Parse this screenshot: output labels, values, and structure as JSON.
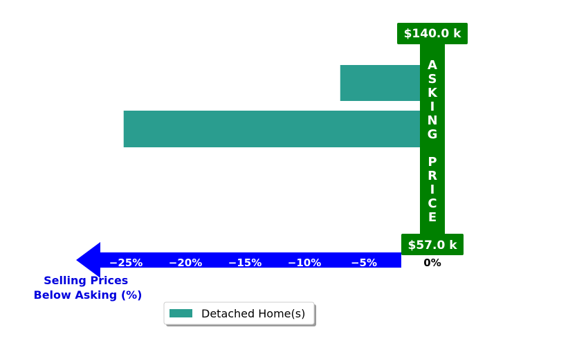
{
  "chart_data": {
    "type": "bar",
    "orientation": "horizontal",
    "series": [
      {
        "name": "Detached Home(s)",
        "values": [
          -6.7,
          -24.9
        ],
        "color": "#2a9d8f"
      }
    ],
    "xlim": [
      -27,
      0
    ],
    "x_ticks": [
      "−25%",
      "−20%",
      "−15%",
      "−10%",
      "−5%"
    ],
    "x_zero_label": "0%",
    "xlabel": "Selling Prices\nBelow Asking (%)",
    "axis_color": "#0000ff",
    "asking_price": {
      "label": "ASKING PRICE",
      "color": "#008000",
      "max_label": "$140.0 k",
      "min_label": "$57.0 k"
    },
    "legend": {
      "position": "bottom-center"
    },
    "grid": false
  }
}
